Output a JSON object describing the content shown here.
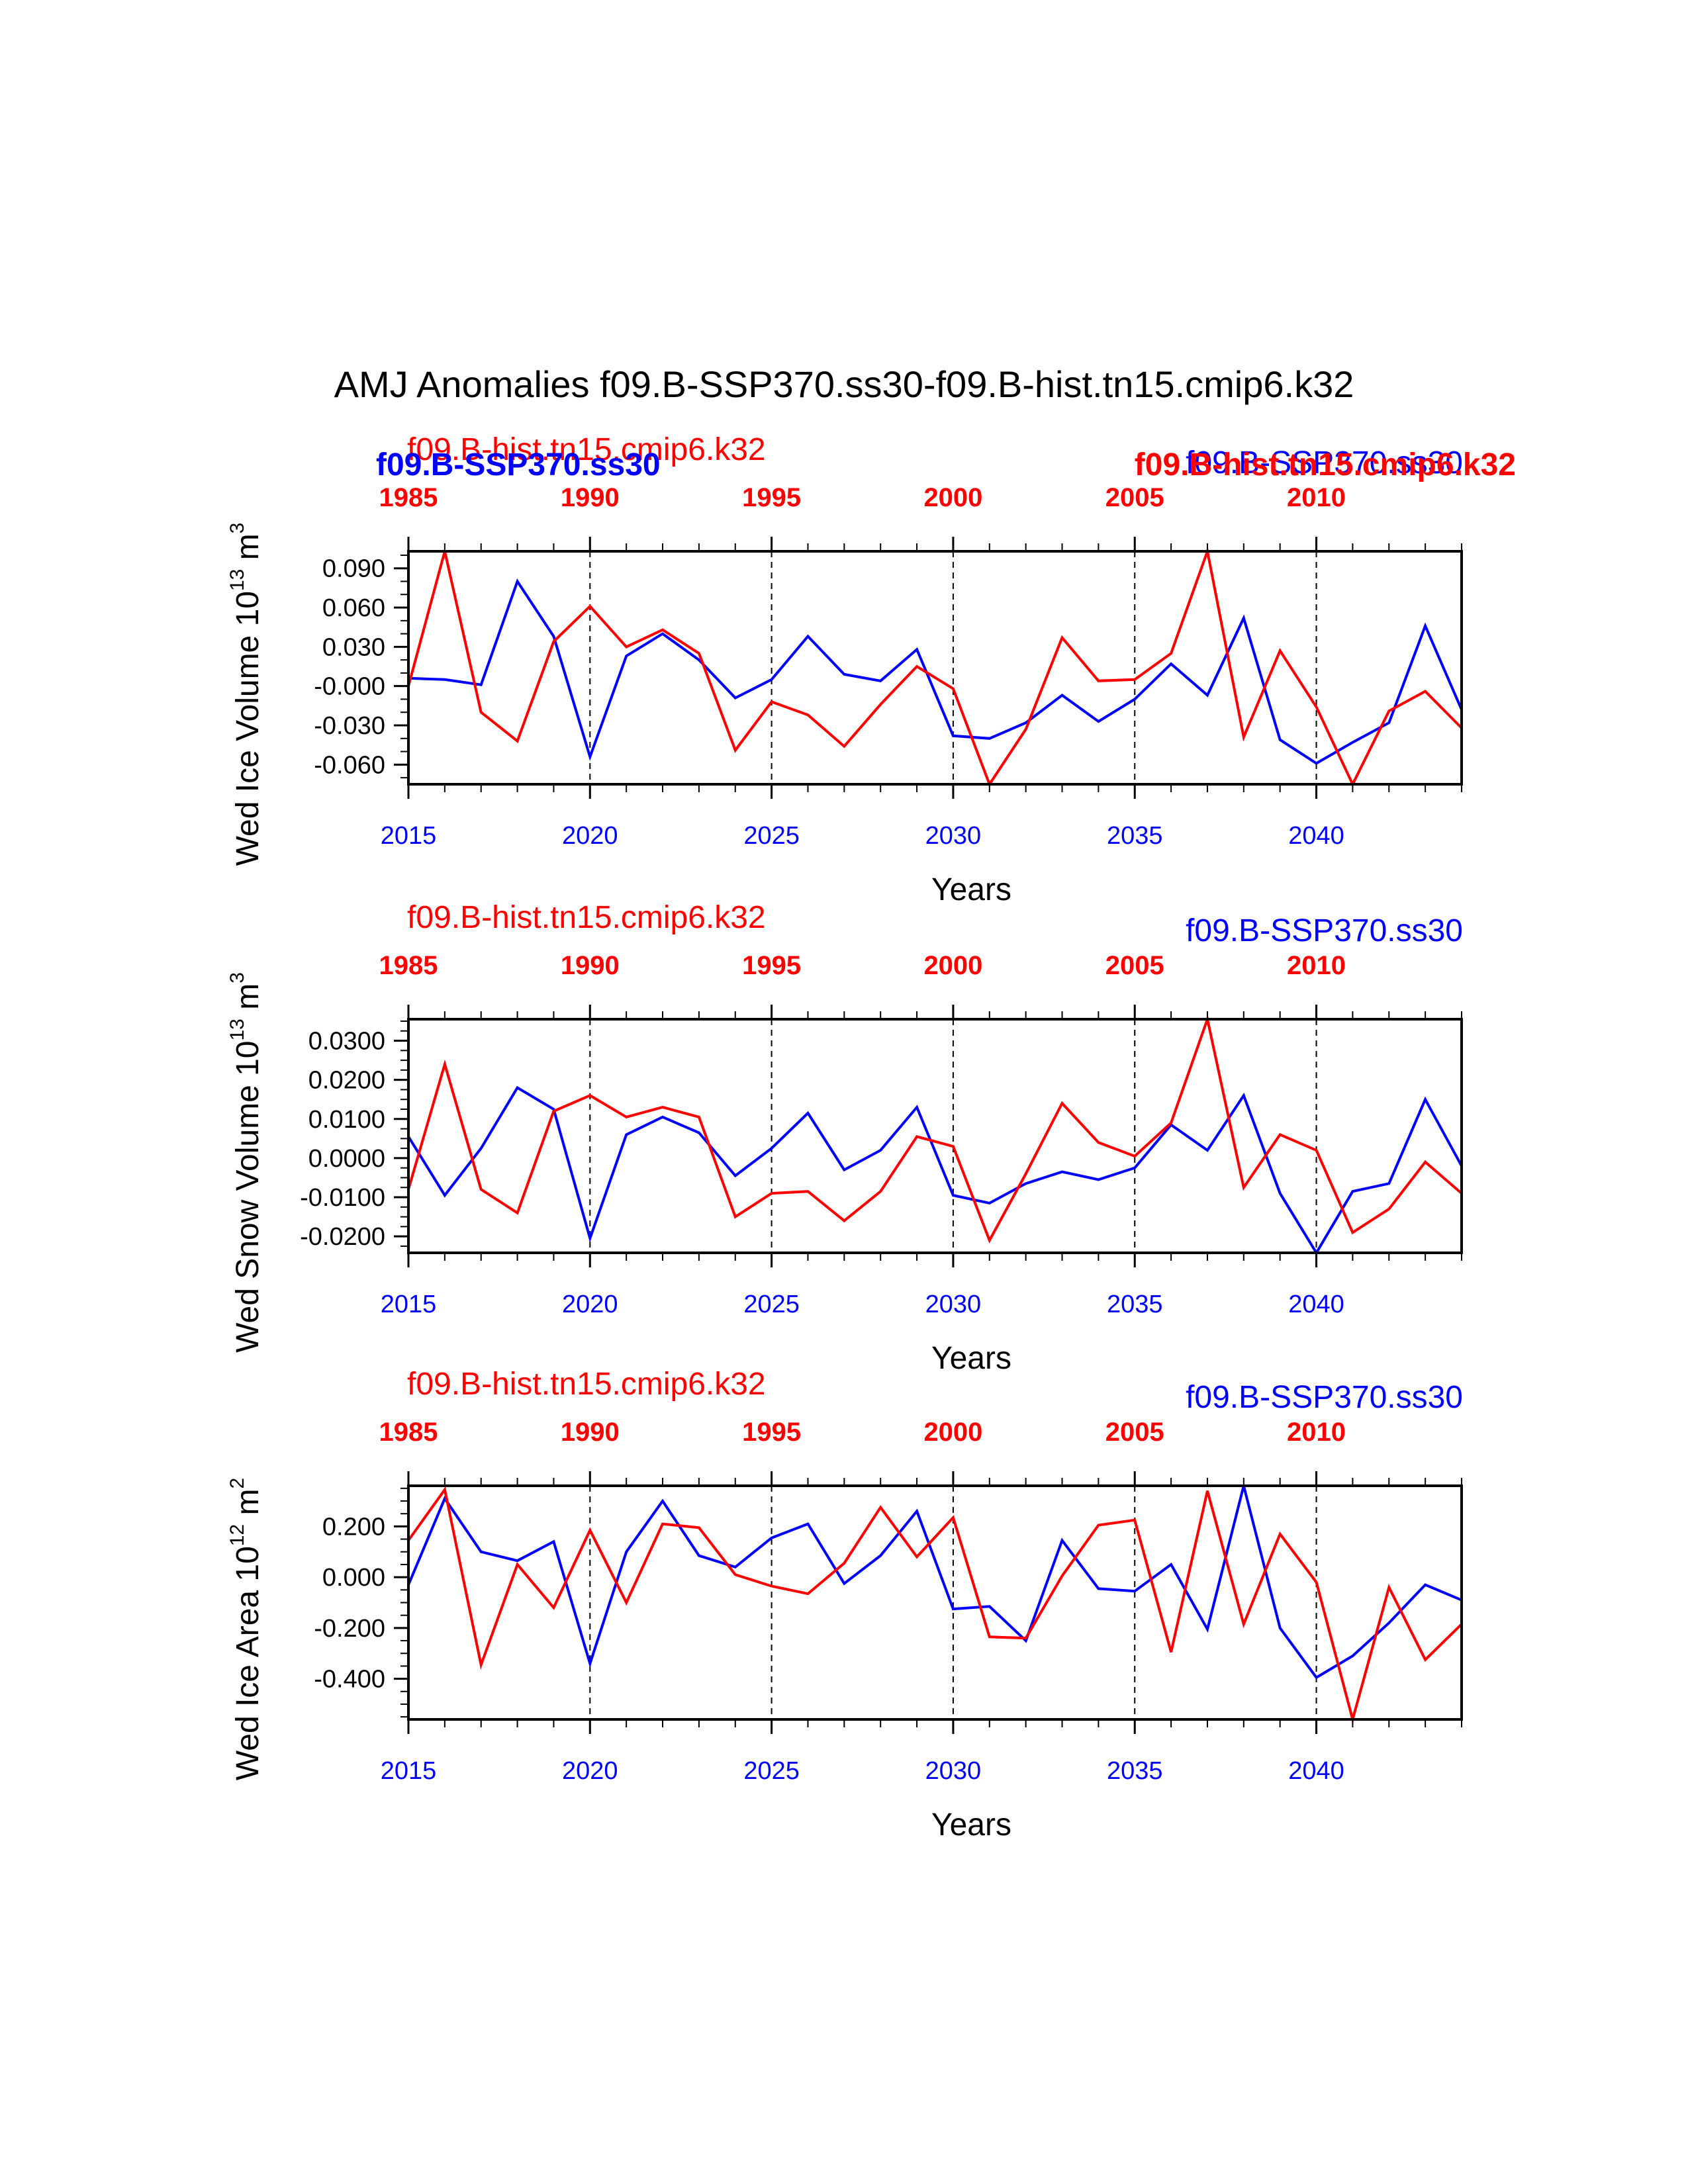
{
  "title": "AMJ Anomalies f09.B-SSP370.ss30-f09.B-hist.tn15.cmip6.k32",
  "colors": {
    "blue": "#0000ff",
    "red": "#ff0000",
    "axis": "#000000"
  },
  "chart_data": [
    {
      "type": "line",
      "ylabel": "Wed Ice Volume 10",
      "ylabel_exp": "13",
      "ylabel_unit": " m",
      "ylabel_unit_exp": "3",
      "xlabel": "Years",
      "title_left": "f09.B-hist.tn15.cmip6.k32",
      "title_right": "f09.B-SSP370.ss30",
      "overlay_left": "f09.B-SSP370.ss30",
      "overlay_right": "f09.B-hist.tn15.cmip6.k32",
      "ylim": [
        -0.075,
        0.103
      ],
      "yticks": [
        -0.06,
        -0.03,
        0.0,
        0.03,
        0.06,
        0.09
      ],
      "ytick_labels": [
        "-0.060",
        "-0.030",
        "-0.000",
        "0.030",
        "0.060",
        "0.090"
      ],
      "yminor_step": 0.01,
      "xlim": [
        2015,
        2044
      ],
      "xticks_bottom": [
        2015,
        2020,
        2025,
        2030,
        2035,
        2040
      ],
      "xticks_top_labels": [
        "1985",
        "1990",
        "1995",
        "2000",
        "2005",
        "2010"
      ],
      "series": [
        {
          "name": "f09.B-SSP370.ss30",
          "color": "#0000ff",
          "x": [
            2015,
            2016,
            2017,
            2018,
            2019,
            2020,
            2021,
            2022,
            2023,
            2024,
            2025,
            2026,
            2027,
            2028,
            2029,
            2030,
            2031,
            2032,
            2033,
            2034,
            2035,
            2036,
            2037,
            2038,
            2039,
            2040,
            2041,
            2042,
            2043,
            2044
          ],
          "values": [
            0.006,
            0.005,
            0.001,
            0.08,
            0.038,
            -0.054,
            0.023,
            0.04,
            0.02,
            -0.009,
            0.005,
            0.038,
            0.009,
            0.004,
            0.028,
            -0.038,
            -0.04,
            -0.028,
            -0.007,
            -0.027,
            -0.01,
            0.017,
            -0.007,
            0.052,
            -0.041,
            -0.059,
            -0.043,
            -0.028,
            0.046,
            -0.018
          ]
        },
        {
          "name": "f09.B-hist.tn15.cmip6.k32",
          "color": "#ff0000",
          "x": [
            2015,
            2016,
            2017,
            2018,
            2019,
            2020,
            2021,
            2022,
            2023,
            2024,
            2025,
            2026,
            2027,
            2028,
            2029,
            2030,
            2031,
            2032,
            2033,
            2034,
            2035,
            2036,
            2037,
            2038,
            2039,
            2040,
            2041,
            2042,
            2043,
            2044
          ],
          "values": [
            0.0,
            0.103,
            -0.02,
            -0.042,
            0.034,
            0.061,
            0.03,
            0.043,
            0.025,
            -0.049,
            -0.012,
            -0.022,
            -0.046,
            -0.014,
            0.015,
            -0.002,
            -0.075,
            -0.033,
            0.037,
            0.004,
            0.005,
            0.025,
            0.103,
            -0.039,
            0.027,
            -0.016,
            -0.075,
            -0.019,
            -0.004,
            -0.032
          ]
        }
      ]
    },
    {
      "type": "line",
      "ylabel": "Wed Snow Volume 10",
      "ylabel_exp": "13",
      "ylabel_unit": " m",
      "ylabel_unit_exp": "3",
      "xlabel": "Years",
      "title_left": "f09.B-hist.tn15.cmip6.k32",
      "title_right": "f09.B-SSP370.ss30",
      "ylim": [
        -0.0242,
        0.0355
      ],
      "yticks": [
        -0.02,
        -0.01,
        0.0,
        0.01,
        0.02,
        0.03
      ],
      "ytick_labels": [
        "-0.0200",
        "-0.0100",
        "0.0000",
        "0.0100",
        "0.0200",
        "0.0300"
      ],
      "yminor_step": 0.0025,
      "xlim": [
        2015,
        2044
      ],
      "xticks_bottom": [
        2015,
        2020,
        2025,
        2030,
        2035,
        2040
      ],
      "xticks_top_labels": [
        "1985",
        "1990",
        "1995",
        "2000",
        "2005",
        "2010"
      ],
      "series": [
        {
          "name": "f09.B-SSP370.ss30",
          "color": "#0000ff",
          "x": [
            2015,
            2016,
            2017,
            2018,
            2019,
            2020,
            2021,
            2022,
            2023,
            2024,
            2025,
            2026,
            2027,
            2028,
            2029,
            2030,
            2031,
            2032,
            2033,
            2034,
            2035,
            2036,
            2037,
            2038,
            2039,
            2040,
            2041,
            2042,
            2043,
            2044
          ],
          "values": [
            0.0055,
            -0.0095,
            0.0025,
            0.018,
            0.0125,
            -0.0205,
            0.006,
            0.0105,
            0.0065,
            -0.0045,
            0.0025,
            0.0115,
            -0.003,
            0.002,
            0.013,
            -0.0095,
            -0.0115,
            -0.0065,
            -0.0035,
            -0.0055,
            -0.0025,
            0.0085,
            0.002,
            0.016,
            -0.009,
            -0.0242,
            -0.0085,
            -0.0065,
            0.015,
            -0.002
          ]
        },
        {
          "name": "f09.B-hist.tn15.cmip6.k32",
          "color": "#ff0000",
          "x": [
            2015,
            2016,
            2017,
            2018,
            2019,
            2020,
            2021,
            2022,
            2023,
            2024,
            2025,
            2026,
            2027,
            2028,
            2029,
            2030,
            2031,
            2032,
            2033,
            2034,
            2035,
            2036,
            2037,
            2038,
            2039,
            2040,
            2041,
            2042,
            2043,
            2044
          ],
          "values": [
            -0.008,
            0.024,
            -0.008,
            -0.014,
            0.012,
            0.016,
            0.0105,
            0.013,
            0.0105,
            -0.015,
            -0.009,
            -0.0085,
            -0.016,
            -0.0085,
            0.0055,
            0.003,
            -0.021,
            -0.004,
            0.014,
            0.004,
            0.0005,
            0.009,
            0.0355,
            -0.0075,
            0.006,
            0.002,
            -0.019,
            -0.013,
            -0.001,
            -0.009
          ]
        }
      ]
    },
    {
      "type": "line",
      "ylabel": "Wed Ice Area 10",
      "ylabel_exp": "12",
      "ylabel_unit": " m",
      "ylabel_unit_exp": "2",
      "xlabel": "Years",
      "title_left": "f09.B-hist.tn15.cmip6.k32",
      "title_right": "f09.B-SSP370.ss30",
      "ylim": [
        -0.56,
        0.36
      ],
      "yticks": [
        -0.4,
        -0.2,
        0.0,
        0.2
      ],
      "ytick_labels": [
        "-0.400",
        "-0.200",
        "0.000",
        "0.200"
      ],
      "yminor_step": 0.05,
      "xlim": [
        2015,
        2044
      ],
      "xticks_bottom": [
        2015,
        2020,
        2025,
        2030,
        2035,
        2040
      ],
      "xticks_top_labels": [
        "1985",
        "1990",
        "1995",
        "2000",
        "2005",
        "2010"
      ],
      "series": [
        {
          "name": "f09.B-SSP370.ss30",
          "color": "#0000ff",
          "x": [
            2015,
            2016,
            2017,
            2018,
            2019,
            2020,
            2021,
            2022,
            2023,
            2024,
            2025,
            2026,
            2027,
            2028,
            2029,
            2030,
            2031,
            2032,
            2033,
            2034,
            2035,
            2036,
            2037,
            2038,
            2039,
            2040,
            2041,
            2042,
            2043,
            2044
          ],
          "values": [
            -0.03,
            0.31,
            0.1,
            0.065,
            0.14,
            -0.34,
            0.1,
            0.3,
            0.085,
            0.04,
            0.155,
            0.21,
            -0.025,
            0.085,
            0.26,
            -0.125,
            -0.115,
            -0.25,
            0.145,
            -0.045,
            -0.055,
            0.05,
            -0.205,
            0.36,
            -0.2,
            -0.395,
            -0.31,
            -0.18,
            -0.03,
            -0.09
          ]
        },
        {
          "name": "f09.B-hist.tn15.cmip6.k32",
          "color": "#ff0000",
          "x": [
            2015,
            2016,
            2017,
            2018,
            2019,
            2020,
            2021,
            2022,
            2023,
            2024,
            2025,
            2026,
            2027,
            2028,
            2029,
            2030,
            2031,
            2032,
            2033,
            2034,
            2035,
            2036,
            2037,
            2038,
            2039,
            2040,
            2041,
            2042,
            2043,
            2044
          ],
          "values": [
            0.145,
            0.345,
            -0.345,
            0.05,
            -0.12,
            0.185,
            -0.1,
            0.21,
            0.195,
            0.01,
            -0.035,
            -0.065,
            0.055,
            0.275,
            0.08,
            0.235,
            -0.235,
            -0.24,
            0.005,
            0.205,
            0.225,
            -0.295,
            0.34,
            -0.185,
            0.17,
            -0.02,
            -0.56,
            -0.04,
            -0.325,
            -0.185
          ]
        }
      ]
    }
  ]
}
